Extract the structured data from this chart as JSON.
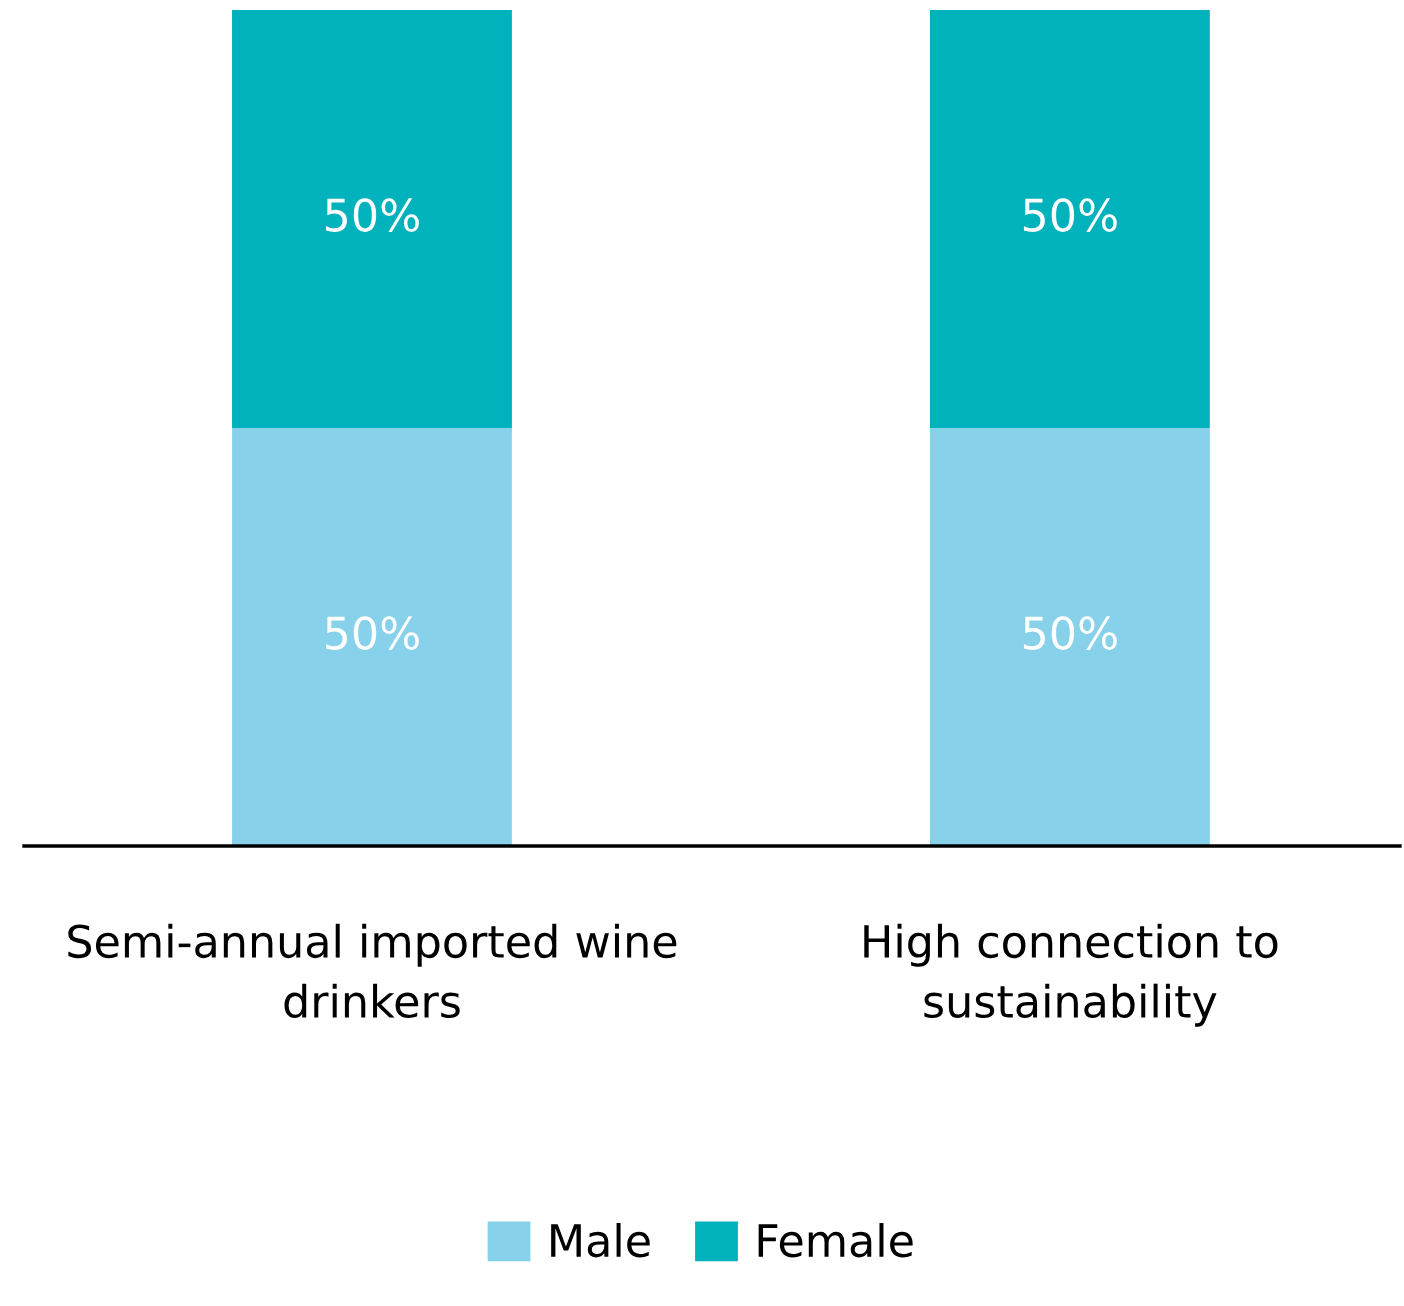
{
  "chart_data": {
    "type": "bar",
    "stacked": true,
    "categories": [
      "Semi-annual imported wine\ndrinkers",
      "High connection to\nsustainability"
    ],
    "series": [
      {
        "name": "Male",
        "color": "#87d1ea",
        "values": [
          50,
          50
        ],
        "value_labels": [
          "50%",
          "50%"
        ]
      },
      {
        "name": "Female",
        "color": "#00b2bb",
        "values": [
          50,
          50
        ],
        "value_labels": [
          "50%",
          "50%"
        ]
      }
    ],
    "ylim": [
      0,
      100
    ],
    "grid": false,
    "legend": "bottom"
  }
}
